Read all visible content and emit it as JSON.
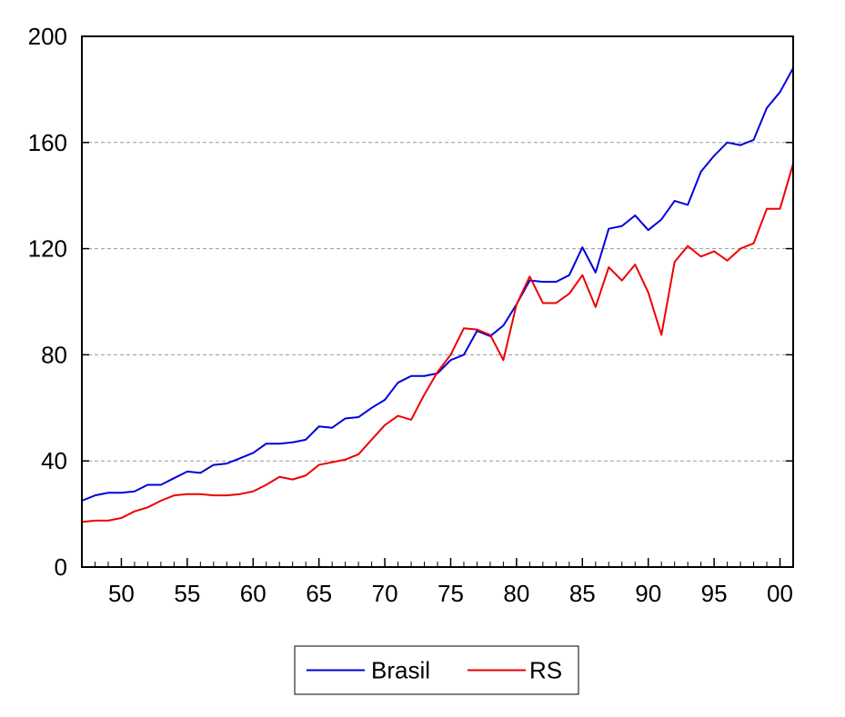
{
  "chart_data": {
    "type": "line",
    "title": "",
    "xlabel": "",
    "ylabel": "",
    "ylim": [
      0,
      200
    ],
    "xlim": [
      1947,
      2001
    ],
    "y_ticks": [
      0,
      40,
      80,
      120,
      160,
      200
    ],
    "y_tick_labels": [
      "0",
      "40",
      "80",
      "120",
      "160",
      "200"
    ],
    "x_ticks": [
      1950,
      1955,
      1960,
      1965,
      1970,
      1975,
      1980,
      1985,
      1990,
      1995,
      2000
    ],
    "x_tick_labels": [
      "50",
      "55",
      "60",
      "65",
      "70",
      "75",
      "80",
      "85",
      "90",
      "95",
      "00"
    ],
    "grid": "horizontal dashed",
    "legend_placement": "bottom-center",
    "x": [
      1947,
      1948,
      1949,
      1950,
      1951,
      1952,
      1953,
      1954,
      1955,
      1956,
      1957,
      1958,
      1959,
      1960,
      1961,
      1962,
      1963,
      1964,
      1965,
      1966,
      1967,
      1968,
      1969,
      1970,
      1971,
      1972,
      1973,
      1974,
      1975,
      1976,
      1977,
      1978,
      1979,
      1980,
      1981,
      1982,
      1983,
      1984,
      1985,
      1986,
      1987,
      1988,
      1989,
      1990,
      1991,
      1992,
      1993,
      1994,
      1995,
      1996,
      1997,
      1998,
      1999,
      2000,
      2001
    ],
    "series": [
      {
        "name": "Brasil",
        "color": "#0000dd",
        "values": [
          25,
          27,
          28,
          28,
          28.5,
          31,
          31,
          33.5,
          36,
          35.5,
          38.5,
          39,
          41,
          43,
          46.5,
          46.5,
          47,
          48,
          53,
          52.5,
          56,
          56.5,
          60,
          63,
          69.5,
          72,
          72,
          73,
          78,
          80,
          89,
          87,
          91,
          99,
          108,
          107.5,
          107.5,
          110,
          120.5,
          111,
          127.5,
          128.5,
          132.5,
          127,
          131,
          138,
          136.5,
          149,
          155,
          160,
          159,
          161,
          173,
          179,
          188
        ]
      },
      {
        "name": "RS",
        "color": "#ee0000",
        "values": [
          17,
          17.5,
          17.5,
          18.5,
          21,
          22.5,
          25,
          27,
          27.5,
          27.5,
          27,
          27,
          27.5,
          28.5,
          31,
          34,
          33,
          34.5,
          38.5,
          39.5,
          40.5,
          42.5,
          48,
          53.5,
          57,
          55.5,
          65,
          73.5,
          80,
          90,
          89.5,
          87.5,
          78,
          99,
          109.5,
          99.5,
          99.5,
          103,
          110,
          98,
          113,
          108,
          114,
          103.5,
          87.5,
          115,
          121,
          117,
          119,
          115.5,
          120,
          122,
          135,
          135,
          152
        ]
      }
    ]
  }
}
